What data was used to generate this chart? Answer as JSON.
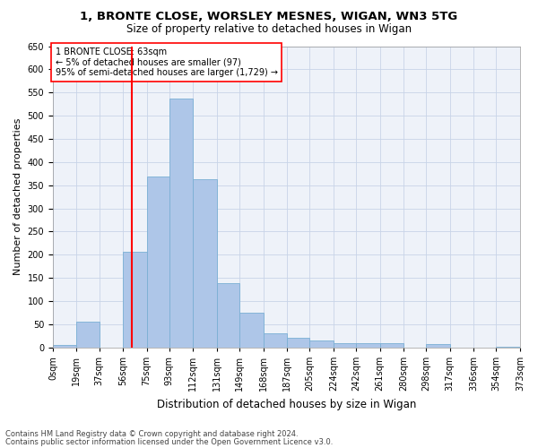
{
  "title_line1": "1, BRONTE CLOSE, WORSLEY MESNES, WIGAN, WN3 5TG",
  "title_line2": "Size of property relative to detached houses in Wigan",
  "xlabel": "Distribution of detached houses by size in Wigan",
  "ylabel": "Number of detached properties",
  "annotation_line1": "1 BRONTE CLOSE: 63sqm",
  "annotation_line2": "← 5% of detached houses are smaller (97)",
  "annotation_line3": "95% of semi-detached houses are larger (1,729) →",
  "footnote1": "Contains HM Land Registry data © Crown copyright and database right 2024.",
  "footnote2": "Contains public sector information licensed under the Open Government Licence v3.0.",
  "bar_edges": [
    0,
    19,
    37,
    56,
    75,
    93,
    112,
    131,
    149,
    168,
    187,
    205,
    224,
    242,
    261,
    280,
    298,
    317,
    336,
    354,
    373
  ],
  "bar_heights": [
    6,
    55,
    0,
    207,
    368,
    536,
    363,
    138,
    75,
    30,
    20,
    15,
    10,
    10,
    10,
    0,
    8,
    0,
    0,
    2
  ],
  "bar_color": "#aec6e8",
  "bar_edgecolor": "#7aafd4",
  "grid_color": "#c8d4e8",
  "vline_x": 63,
  "vline_color": "red",
  "ylim": [
    0,
    650
  ],
  "yticks": [
    0,
    50,
    100,
    150,
    200,
    250,
    300,
    350,
    400,
    450,
    500,
    550,
    600,
    650
  ],
  "tick_labels": [
    "0sqm",
    "19sqm",
    "37sqm",
    "56sqm",
    "75sqm",
    "93sqm",
    "112sqm",
    "131sqm",
    "149sqm",
    "168sqm",
    "187sqm",
    "205sqm",
    "224sqm",
    "242sqm",
    "261sqm",
    "280sqm",
    "298sqm",
    "317sqm",
    "336sqm",
    "354sqm",
    "373sqm"
  ],
  "background_color": "#eef2f9",
  "title_fontsize": 9.5,
  "subtitle_fontsize": 8.5,
  "ylabel_fontsize": 8,
  "xlabel_fontsize": 8.5,
  "tick_fontsize": 7,
  "annotation_fontsize": 7,
  "footnote_fontsize": 6
}
